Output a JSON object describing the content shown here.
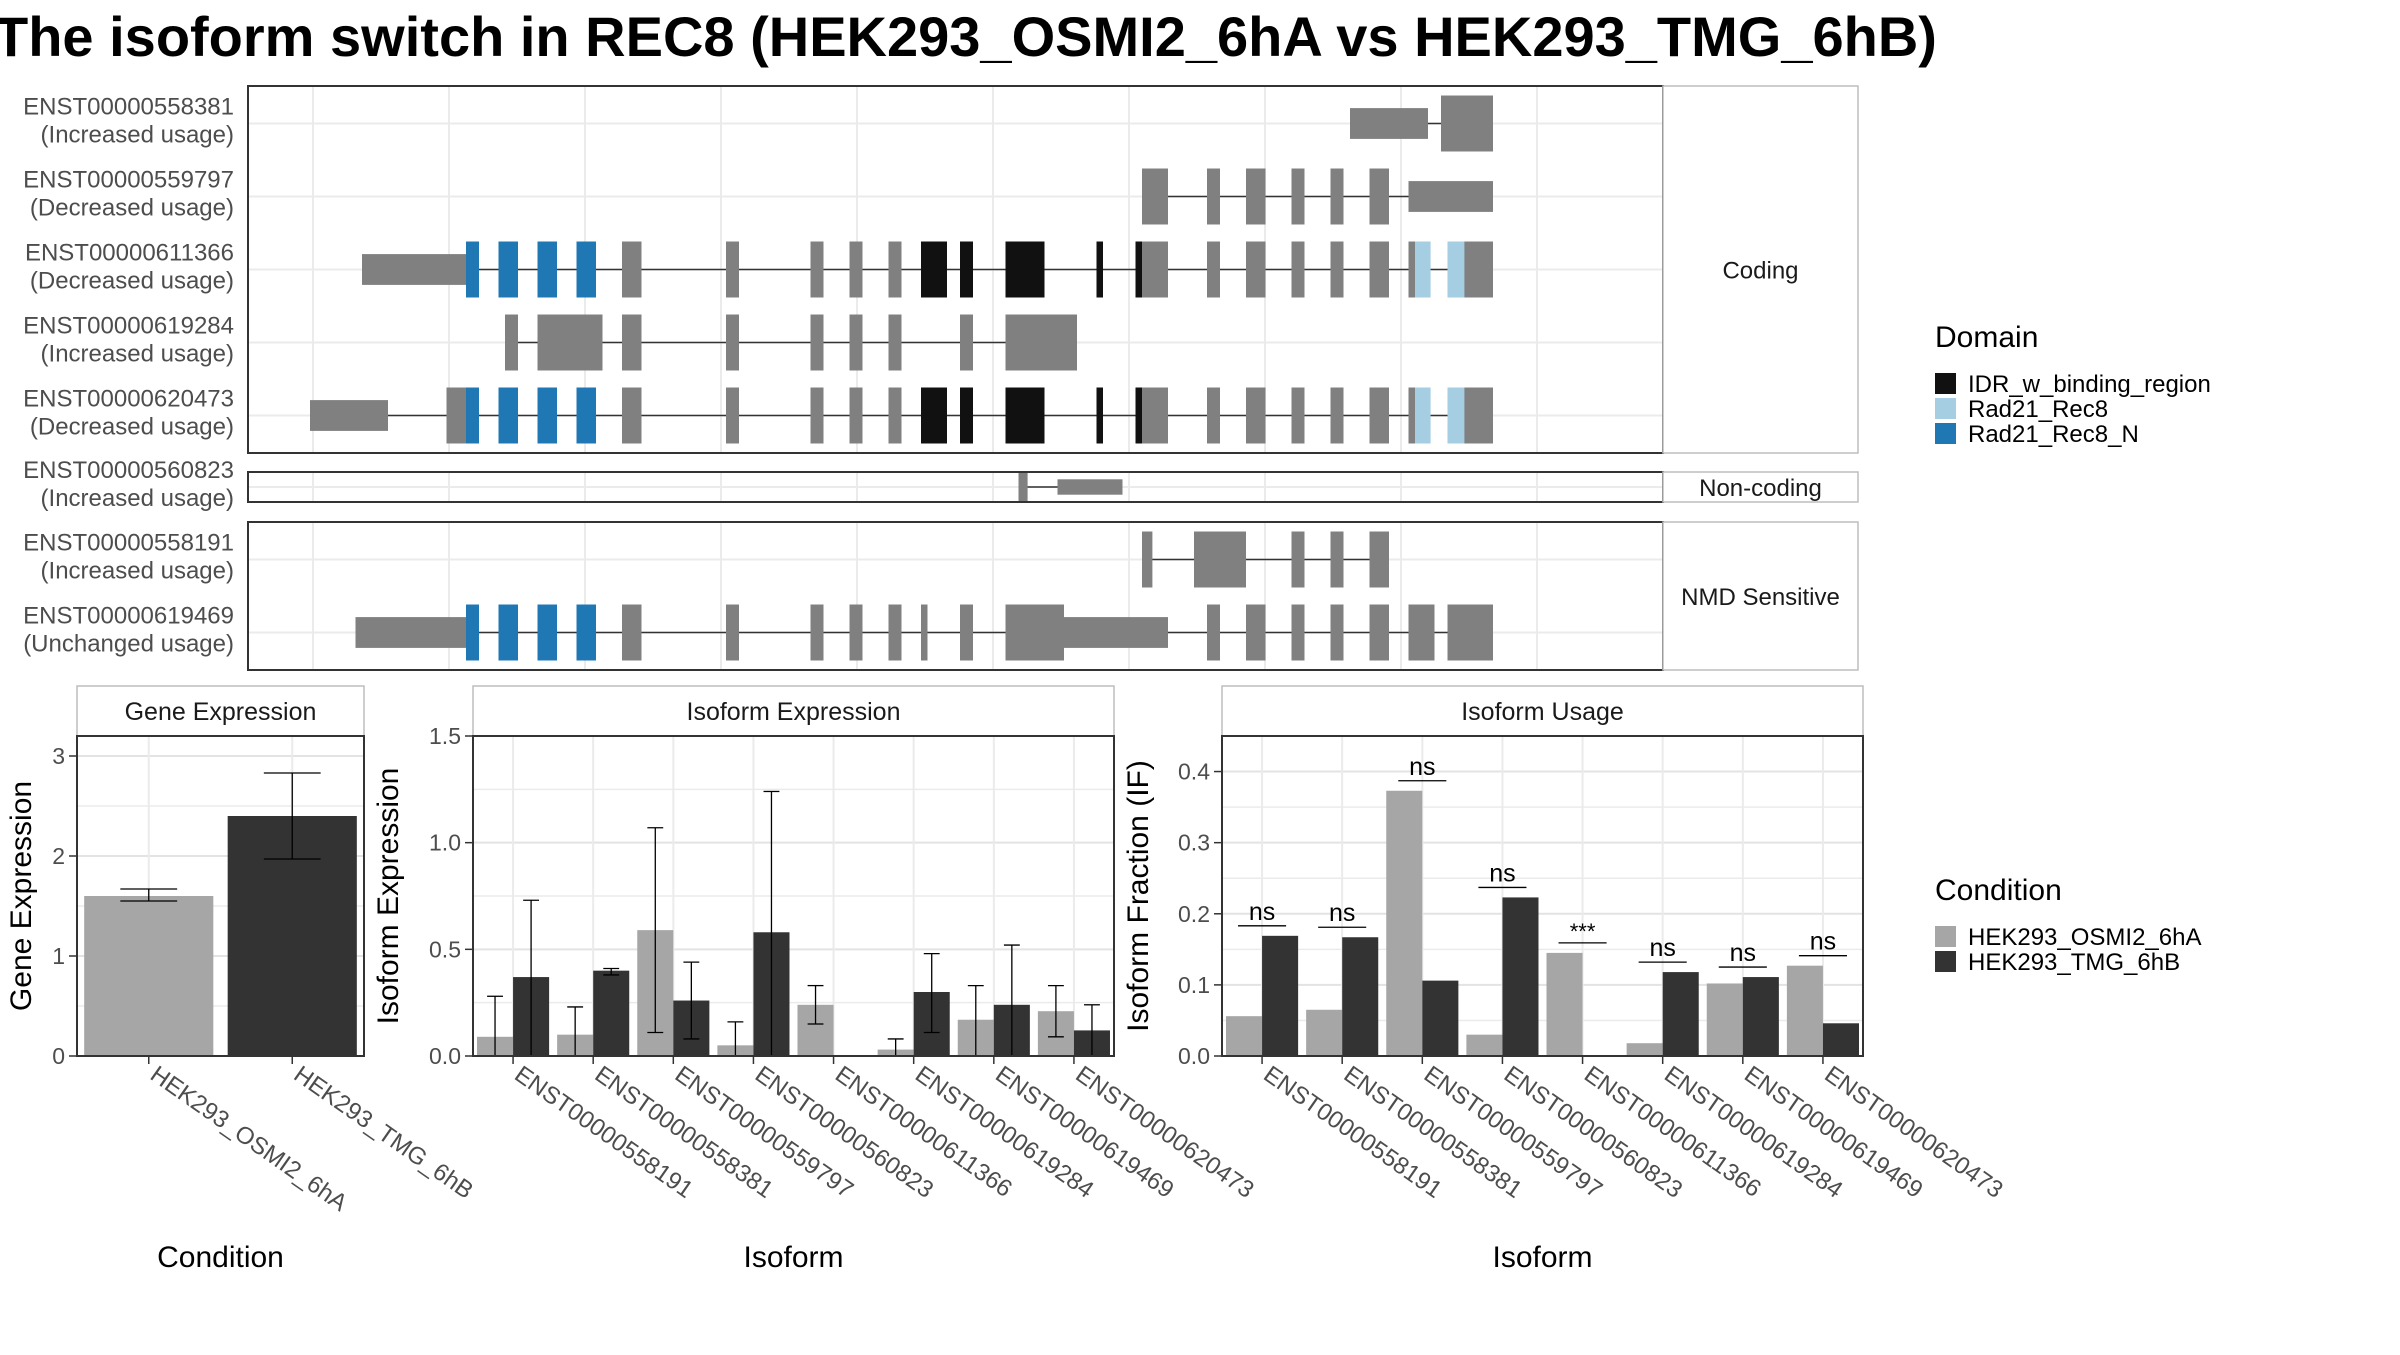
{
  "title": "The isoform switch in REC8 (HEK293_OSMI2_6hA vs HEK293_TMG_6hB)",
  "colors": {
    "exon_default": "#808080",
    "IDR_w_binding_region": "#111111",
    "Rad21_Rec8": "#a6cee3",
    "Rad21_Rec8_N": "#1f78b4",
    "condition_A": "#a6a6a6",
    "condition_B": "#333333"
  },
  "structure": {
    "panels": [
      {
        "label": "Coding",
        "isoforms": [
          {
            "id": "ENST00000558381",
            "usage": "(Increased usage)",
            "exons": [
              [
                0.8,
                0.86
              ],
              [
                0.87,
                0.91
              ]
            ]
          },
          {
            "id": "ENST00000559797",
            "usage": "(Decreased usage)",
            "exons": [
              [
                0.64,
                0.66
              ],
              [
                0.69,
                0.7
              ],
              [
                0.72,
                0.735
              ],
              [
                0.755,
                0.765
              ],
              [
                0.785,
                0.795
              ],
              [
                0.815,
                0.83
              ],
              [
                0.845,
                0.91
              ]
            ]
          },
          {
            "id": "ENST00000611366",
            "usage": "(Decreased usage)",
            "exons": [
              [
                0.04,
                0.12
              ],
              [
                0.12,
                0.13
              ],
              [
                0.145,
                0.16
              ],
              [
                0.175,
                0.19
              ],
              [
                0.205,
                0.22
              ],
              [
                0.24,
                0.255
              ],
              [
                0.32,
                0.33
              ],
              [
                0.385,
                0.395
              ],
              [
                0.415,
                0.425
              ],
              [
                0.445,
                0.455
              ],
              [
                0.47,
                0.49
              ],
              [
                0.5,
                0.51
              ],
              [
                0.535,
                0.565
              ],
              [
                0.605,
                0.61
              ],
              [
                0.635,
                0.66
              ],
              [
                0.69,
                0.7
              ],
              [
                0.72,
                0.735
              ],
              [
                0.755,
                0.765
              ],
              [
                0.785,
                0.795
              ],
              [
                0.815,
                0.83
              ],
              [
                0.845,
                0.86
              ],
              [
                0.875,
                0.89
              ],
              [
                0.89,
                0.91
              ]
            ],
            "domains": [
              [
                0.12,
                0.13,
                "Rad21_Rec8_N"
              ],
              [
                0.145,
                0.16,
                "Rad21_Rec8_N"
              ],
              [
                0.175,
                0.19,
                "Rad21_Rec8_N"
              ],
              [
                0.205,
                0.22,
                "Rad21_Rec8_N"
              ],
              [
                0.47,
                0.49,
                "IDR_w_binding_region"
              ],
              [
                0.5,
                0.51,
                "IDR_w_binding_region"
              ],
              [
                0.535,
                0.565,
                "IDR_w_binding_region"
              ],
              [
                0.605,
                0.61,
                "IDR_w_binding_region"
              ],
              [
                0.635,
                0.64,
                "IDR_w_binding_region"
              ],
              [
                0.85,
                0.862,
                "Rad21_Rec8"
              ],
              [
                0.875,
                0.888,
                "Rad21_Rec8"
              ]
            ]
          },
          {
            "id": "ENST00000619284",
            "usage": "(Increased usage)",
            "exons": [
              [
                0.15,
                0.16
              ],
              [
                0.175,
                0.22
              ],
              [
                0.22,
                0.225
              ],
              [
                0.24,
                0.255
              ],
              [
                0.32,
                0.33
              ],
              [
                0.385,
                0.395
              ],
              [
                0.415,
                0.425
              ],
              [
                0.445,
                0.455
              ],
              [
                0.5,
                0.51
              ],
              [
                0.535,
                0.59
              ]
            ]
          },
          {
            "id": "ENST00000620473",
            "usage": "(Decreased usage)",
            "exons": [
              [
                0.0,
                0.06
              ],
              [
                0.105,
                0.12
              ],
              [
                0.12,
                0.13
              ],
              [
                0.145,
                0.16
              ],
              [
                0.175,
                0.19
              ],
              [
                0.205,
                0.22
              ],
              [
                0.24,
                0.255
              ],
              [
                0.32,
                0.33
              ],
              [
                0.385,
                0.395
              ],
              [
                0.415,
                0.425
              ],
              [
                0.445,
                0.455
              ],
              [
                0.47,
                0.49
              ],
              [
                0.5,
                0.51
              ],
              [
                0.535,
                0.565
              ],
              [
                0.605,
                0.61
              ],
              [
                0.635,
                0.66
              ],
              [
                0.69,
                0.7
              ],
              [
                0.72,
                0.735
              ],
              [
                0.755,
                0.765
              ],
              [
                0.785,
                0.795
              ],
              [
                0.815,
                0.83
              ],
              [
                0.845,
                0.86
              ],
              [
                0.875,
                0.89
              ],
              [
                0.89,
                0.91
              ]
            ],
            "domains": [
              [
                0.12,
                0.13,
                "Rad21_Rec8_N"
              ],
              [
                0.145,
                0.16,
                "Rad21_Rec8_N"
              ],
              [
                0.175,
                0.19,
                "Rad21_Rec8_N"
              ],
              [
                0.205,
                0.22,
                "Rad21_Rec8_N"
              ],
              [
                0.47,
                0.49,
                "IDR_w_binding_region"
              ],
              [
                0.5,
                0.51,
                "IDR_w_binding_region"
              ],
              [
                0.535,
                0.565,
                "IDR_w_binding_region"
              ],
              [
                0.605,
                0.61,
                "IDR_w_binding_region"
              ],
              [
                0.635,
                0.64,
                "IDR_w_binding_region"
              ],
              [
                0.85,
                0.862,
                "Rad21_Rec8"
              ],
              [
                0.875,
                0.888,
                "Rad21_Rec8"
              ]
            ]
          }
        ]
      },
      {
        "label": "Non-coding",
        "isoforms": [
          {
            "id": "ENST00000560823",
            "usage": "(Increased usage)",
            "exons": [
              [
                0.545,
                0.552
              ],
              [
                0.575,
                0.625
              ]
            ]
          }
        ]
      },
      {
        "label": "NMD Sensitive",
        "isoforms": [
          {
            "id": "ENST00000558191",
            "usage": "(Increased usage)",
            "exons": [
              [
                0.64,
                0.648
              ],
              [
                0.68,
                0.72
              ],
              [
                0.755,
                0.765
              ],
              [
                0.785,
                0.795
              ],
              [
                0.815,
                0.83
              ]
            ]
          },
          {
            "id": "ENST00000619469",
            "usage": "(Unchanged usage)",
            "exons": [
              [
                0.035,
                0.12
              ],
              [
                0.12,
                0.13
              ],
              [
                0.145,
                0.16
              ],
              [
                0.175,
                0.19
              ],
              [
                0.205,
                0.22
              ],
              [
                0.24,
                0.255
              ],
              [
                0.32,
                0.33
              ],
              [
                0.385,
                0.395
              ],
              [
                0.415,
                0.425
              ],
              [
                0.445,
                0.455
              ],
              [
                0.47,
                0.475
              ],
              [
                0.5,
                0.51
              ],
              [
                0.535,
                0.58
              ],
              [
                0.58,
                0.66
              ],
              [
                0.69,
                0.7
              ],
              [
                0.72,
                0.735
              ],
              [
                0.755,
                0.765
              ],
              [
                0.785,
                0.795
              ],
              [
                0.815,
                0.83
              ],
              [
                0.845,
                0.865
              ],
              [
                0.875,
                0.91
              ]
            ],
            "domains": [
              [
                0.12,
                0.13,
                "Rad21_Rec8_N"
              ],
              [
                0.145,
                0.16,
                "Rad21_Rec8_N"
              ],
              [
                0.175,
                0.19,
                "Rad21_Rec8_N"
              ],
              [
                0.205,
                0.22,
                "Rad21_Rec8_N"
              ]
            ]
          }
        ]
      }
    ]
  },
  "legend_domain": {
    "title": "Domain",
    "items": [
      {
        "label": "IDR_w_binding_region",
        "color": "#111111"
      },
      {
        "label": "Rad21_Rec8",
        "color": "#a6cee3"
      },
      {
        "label": "Rad21_Rec8_N",
        "color": "#1f78b4"
      }
    ]
  },
  "legend_condition": {
    "title": "Condition",
    "items": [
      {
        "label": "HEK293_OSMI2_6hA",
        "color": "#a6a6a6"
      },
      {
        "label": "HEK293_TMG_6hB",
        "color": "#333333"
      }
    ]
  },
  "chart_data": [
    {
      "type": "bar",
      "title": "Gene Expression",
      "xlabel": "Condition",
      "ylabel": "Gene Expression",
      "ylim": [
        0,
        3.2
      ],
      "yticks": [
        0,
        1,
        2,
        3
      ],
      "categories": [
        "HEK293_OSMI2_6hA",
        "HEK293_TMG_6hB"
      ],
      "values": [
        1.6,
        2.4
      ],
      "errors": [
        [
          1.55,
          1.67
        ],
        [
          1.97,
          2.83
        ]
      ]
    },
    {
      "type": "bar",
      "title": "Isoform Expression",
      "xlabel": "Isoform",
      "ylabel": "Isoform Expression",
      "ylim": [
        0,
        1.5
      ],
      "yticks": [
        0.0,
        0.5,
        1.0,
        1.5
      ],
      "categories": [
        "ENST00000558191",
        "ENST00000558381",
        "ENST00000559797",
        "ENST00000560823",
        "ENST00000611366",
        "ENST00000619284",
        "ENST00000619469",
        "ENST00000620473"
      ],
      "series": [
        {
          "name": "HEK293_OSMI2_6hA",
          "values": [
            0.09,
            0.1,
            0.59,
            0.05,
            0.24,
            0.03,
            0.17,
            0.21
          ],
          "errors": [
            [
              0,
              0.28
            ],
            [
              0,
              0.23
            ],
            [
              0.11,
              1.07
            ],
            [
              0,
              0.16
            ],
            [
              0.15,
              0.33
            ],
            [
              0,
              0.08
            ],
            [
              0,
              0.33
            ],
            [
              0.09,
              0.33
            ]
          ]
        },
        {
          "name": "HEK293_TMG_6hB",
          "values": [
            0.37,
            0.4,
            0.26,
            0.58,
            0.0,
            0.3,
            0.24,
            0.12
          ],
          "errors": [
            [
              0,
              0.73
            ],
            [
              0.38,
              0.41
            ],
            [
              0.08,
              0.44
            ],
            [
              0,
              1.24
            ],
            [
              0,
              0
            ],
            [
              0.11,
              0.48
            ],
            [
              0,
              0.52
            ],
            [
              0,
              0.24
            ]
          ]
        }
      ]
    },
    {
      "type": "bar",
      "title": "Isoform Usage",
      "xlabel": "Isoform",
      "ylabel": "Isoform Fraction (IF)",
      "ylim": [
        0,
        0.45
      ],
      "yticks": [
        0.0,
        0.1,
        0.2,
        0.3,
        0.4
      ],
      "categories": [
        "ENST00000558191",
        "ENST00000558381",
        "ENST00000559797",
        "ENST00000560823",
        "ENST00000611366",
        "ENST00000619284",
        "ENST00000619469",
        "ENST00000620473"
      ],
      "series": [
        {
          "name": "HEK293_OSMI2_6hA",
          "values": [
            0.056,
            0.065,
            0.373,
            0.03,
            0.145,
            0.018,
            0.102,
            0.127
          ]
        },
        {
          "name": "HEK293_TMG_6hB",
          "values": [
            0.169,
            0.167,
            0.106,
            0.223,
            0.0,
            0.118,
            0.111,
            0.046
          ]
        }
      ],
      "significance": [
        "ns",
        "ns",
        "ns",
        "ns",
        "***",
        "ns",
        "ns",
        "ns"
      ]
    }
  ]
}
